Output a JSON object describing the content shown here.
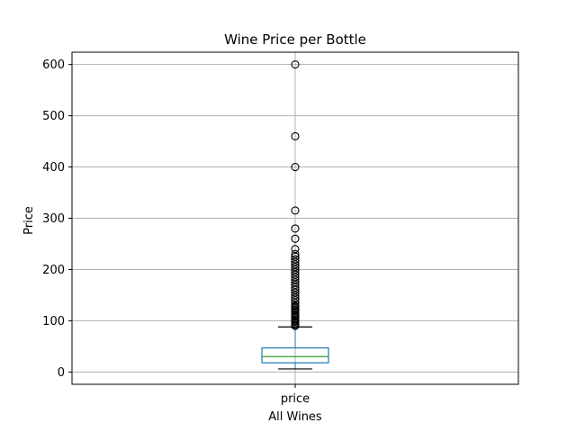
{
  "chart_data": {
    "type": "box",
    "title": "Wine Price per Bottle",
    "xlabel": "All Wines",
    "ylabel": "Price",
    "categories": [
      "price"
    ],
    "ylim": [
      -24,
      624
    ],
    "yticks": [
      0,
      100,
      200,
      300,
      400,
      500,
      600
    ],
    "grid": true,
    "box": {
      "whisker_low": 6,
      "q1": 18,
      "median": 30,
      "q3": 47,
      "whisker_high": 88
    },
    "outliers": [
      90,
      92,
      95,
      98,
      100,
      102,
      105,
      108,
      110,
      112,
      115,
      118,
      120,
      122,
      125,
      128,
      130,
      135,
      140,
      145,
      150,
      155,
      160,
      165,
      170,
      175,
      180,
      185,
      190,
      195,
      200,
      205,
      210,
      215,
      220,
      225,
      230,
      240,
      260,
      280,
      315,
      400,
      460,
      600
    ],
    "colors": {
      "box": "#1f77b4",
      "median": "#2ca02c",
      "whisker": "#000000",
      "grid": "#b0b0b0"
    }
  }
}
